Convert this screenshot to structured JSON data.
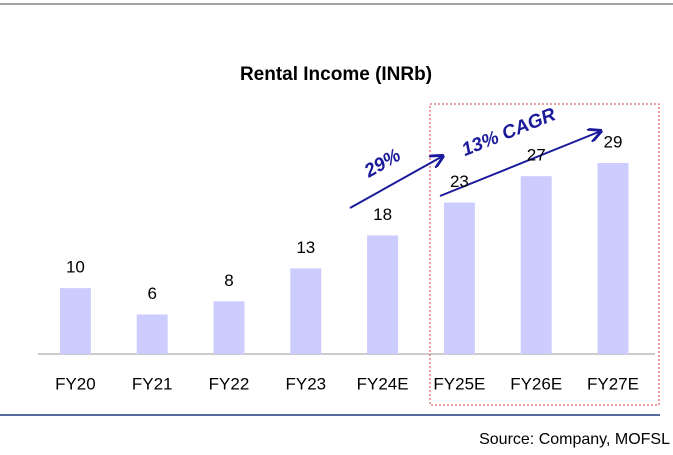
{
  "chart_data": {
    "type": "bar",
    "title": "Rental Income (INRb)",
    "categories": [
      "FY20",
      "FY21",
      "FY22",
      "FY23",
      "FY24E",
      "FY25E",
      "FY26E",
      "FY27E"
    ],
    "values": [
      10,
      6,
      8,
      13,
      18,
      23,
      27,
      29
    ],
    "color": "#ccccff",
    "annotations": [
      "29%",
      "13% CAGR"
    ],
    "source": "Source: Company, MOFSL"
  }
}
